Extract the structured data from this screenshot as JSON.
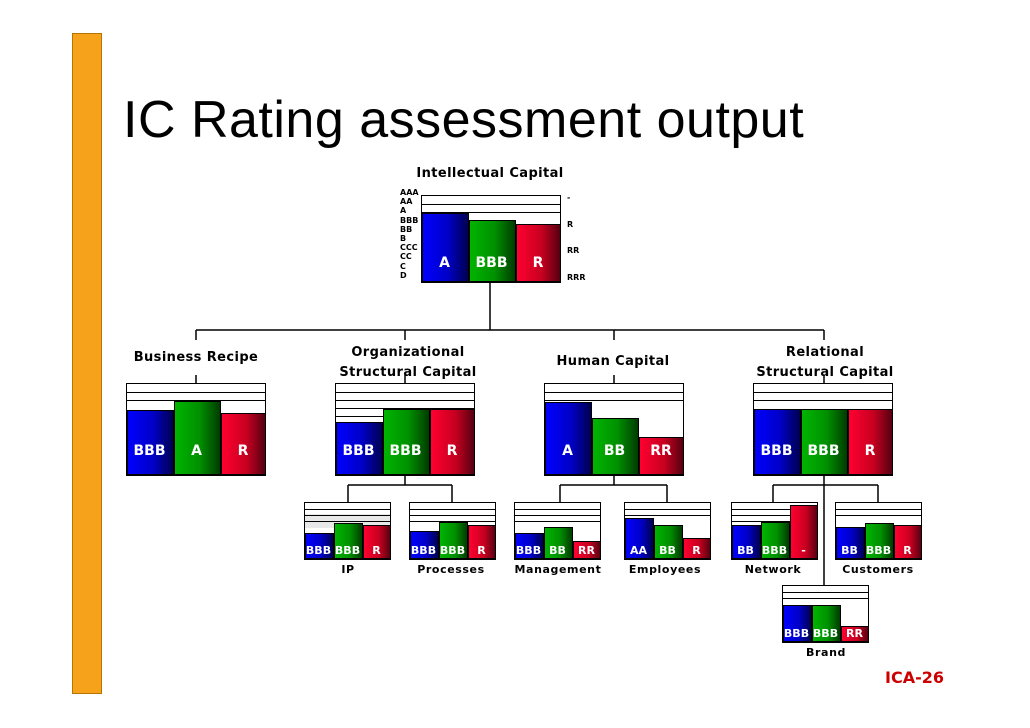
{
  "slide": {
    "title": "IC Rating assessment output",
    "slide_id": "ICA-26",
    "accent_color": "#f7a21b",
    "id_color": "#cc0000"
  },
  "rating_scale": [
    "AAA",
    "AA",
    "A",
    "BBB",
    "BB",
    "B",
    "CCC",
    "CC",
    "C",
    "D"
  ],
  "rating_scale_right": [
    "-",
    "R",
    "RR",
    "RRR"
  ],
  "root": {
    "name": "Intellectual Capital",
    "bars": [
      {
        "label": "A",
        "color": "blue"
      },
      {
        "label": "BBB",
        "color": "green"
      },
      {
        "label": "R",
        "color": "red"
      }
    ]
  },
  "level1": [
    {
      "name": "Business Recipe",
      "bars": [
        {
          "label": "BBB",
          "color": "blue"
        },
        {
          "label": "A",
          "color": "green"
        },
        {
          "label": "R",
          "color": "red"
        }
      ]
    },
    {
      "name": "Organizational Structural Capital",
      "name_lines": [
        "Organizational",
        "Structural Capital"
      ],
      "bars": [
        {
          "label": "BBB",
          "color": "blue"
        },
        {
          "label": "BBB",
          "color": "green"
        },
        {
          "label": "R",
          "color": "red"
        }
      ]
    },
    {
      "name": "Human Capital",
      "bars": [
        {
          "label": "A",
          "color": "blue"
        },
        {
          "label": "BB",
          "color": "green"
        },
        {
          "label": "RR",
          "color": "red"
        }
      ]
    },
    {
      "name": "Relational Structural Capital",
      "name_lines": [
        "Relational",
        "Structural Capital"
      ],
      "bars": [
        {
          "label": "BBB",
          "color": "blue"
        },
        {
          "label": "BBB",
          "color": "green"
        },
        {
          "label": "R",
          "color": "red"
        }
      ]
    }
  ],
  "level2": [
    {
      "name": "IP",
      "bars": [
        {
          "label": "BBB",
          "color": "blue"
        },
        {
          "label": "BBB",
          "color": "green"
        },
        {
          "label": "R",
          "color": "red"
        }
      ]
    },
    {
      "name": "Processes",
      "bars": [
        {
          "label": "BBB",
          "color": "blue"
        },
        {
          "label": "BBB",
          "color": "green"
        },
        {
          "label": "R",
          "color": "red"
        }
      ]
    },
    {
      "name": "Management",
      "bars": [
        {
          "label": "BBB",
          "color": "blue"
        },
        {
          "label": "BB",
          "color": "green"
        },
        {
          "label": "RR",
          "color": "red"
        }
      ]
    },
    {
      "name": "Employees",
      "bars": [
        {
          "label": "AA",
          "color": "blue"
        },
        {
          "label": "BB",
          "color": "green"
        },
        {
          "label": "R",
          "color": "red"
        }
      ]
    },
    {
      "name": "Network",
      "bars": [
        {
          "label": "BB",
          "color": "blue"
        },
        {
          "label": "BBB",
          "color": "green"
        },
        {
          "label": "-",
          "color": "red"
        }
      ]
    },
    {
      "name": "Customers",
      "bars": [
        {
          "label": "BB",
          "color": "blue"
        },
        {
          "label": "BBB",
          "color": "green"
        },
        {
          "label": "R",
          "color": "red"
        }
      ]
    },
    {
      "name": "Brand",
      "bars": [
        {
          "label": "BBB",
          "color": "blue"
        },
        {
          "label": "BBB",
          "color": "green"
        },
        {
          "label": "RR",
          "color": "red"
        }
      ]
    }
  ]
}
